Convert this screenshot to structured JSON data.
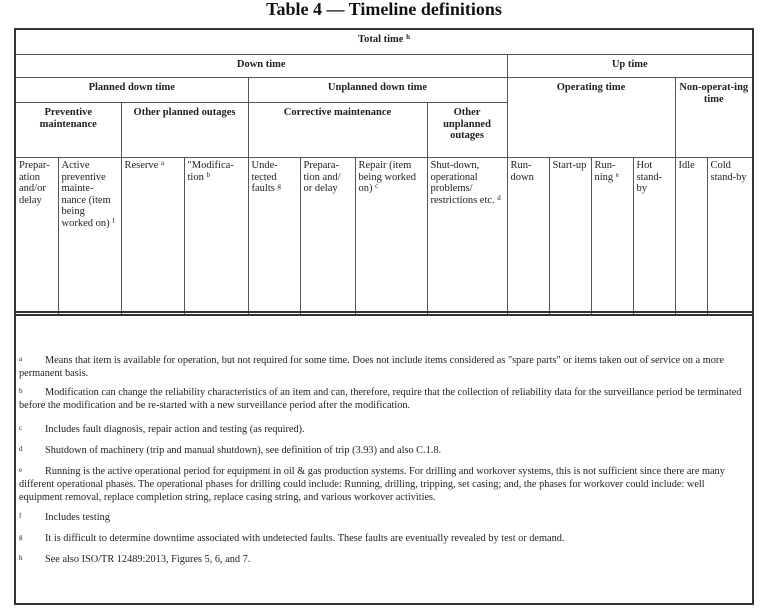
{
  "title": "Table 4 — Timeline definitions",
  "table": {
    "total": "Total time",
    "total_ref": "h",
    "down_time": "Down time",
    "up_time": "Up time",
    "planned": "Planned down time",
    "unplanned": "Unplanned down time",
    "operating": "Operating time",
    "non_operating": "Non-operat-ing time",
    "preventive": "Preventive maintenance",
    "other_planned": "Other planned outages",
    "corrective": "Corrective maintenance",
    "other_unplanned": "Other unplanned outages",
    "leaves": [
      {
        "text": "Prepar-ation and/or delay",
        "ref": ""
      },
      {
        "text": "Active preventive mainte-nance (item being worked on)",
        "ref": "f"
      },
      {
        "text": "Reserve",
        "ref": "a"
      },
      {
        "text": "\"Modifica-tion",
        "ref": "b"
      },
      {
        "text": "Unde-tected faults",
        "ref": "g"
      },
      {
        "text": "Prepara-tion and/ or delay",
        "ref": ""
      },
      {
        "text": "Repair (item being worked on)",
        "ref": "c"
      },
      {
        "text": "Shut-down, operational problems/ restrictions etc.",
        "ref": "d"
      },
      {
        "text": "Run-down",
        "ref": ""
      },
      {
        "text": "Start-up",
        "ref": ""
      },
      {
        "text": "Run-ning",
        "ref": "e"
      },
      {
        "text": "Hot stand-by",
        "ref": ""
      },
      {
        "text": "Idle",
        "ref": ""
      },
      {
        "text": "Cold stand-by",
        "ref": ""
      }
    ]
  },
  "footnotes": [
    {
      "key": "a",
      "text": "Means that item is available for operation, but not required for some time. Does not include items considered as \"spare parts\" or items taken out of service on a more permanent basis."
    },
    {
      "key": "b",
      "text": "Modification can change the reliability characteristics of an item and can, therefore, require that the collection of reliability data for the surveillance period be terminated before the modification and be re-started with a new surveillance period after the modification."
    },
    {
      "key": "c",
      "text": "Includes fault diagnosis, repair action and testing (as required)."
    },
    {
      "key": "d",
      "text": "Shutdown of machinery (trip and manual shutdown), see definition of trip (3.93) and also C.1.8."
    },
    {
      "key": "e",
      "text": "Running is the active operational period for equipment in oil & gas production systems. For drilling and workover systems, this is not sufficient since there are many different operational phases. The operational phases for drilling could include: Running, drilling, tripping, set casing; and, the phases for workover could include: well equipment removal, replace completion string, replace casing string, and various workover activities."
    },
    {
      "key": "f",
      "text": "Includes testing"
    },
    {
      "key": "g",
      "text": "It is difficult to determine downtime associated with undetected faults. These faults are eventually revealed by test or demand."
    },
    {
      "key": "h",
      "text": "See also ISO/TR 12489:2013, Figures 5, 6, and 7."
    }
  ]
}
